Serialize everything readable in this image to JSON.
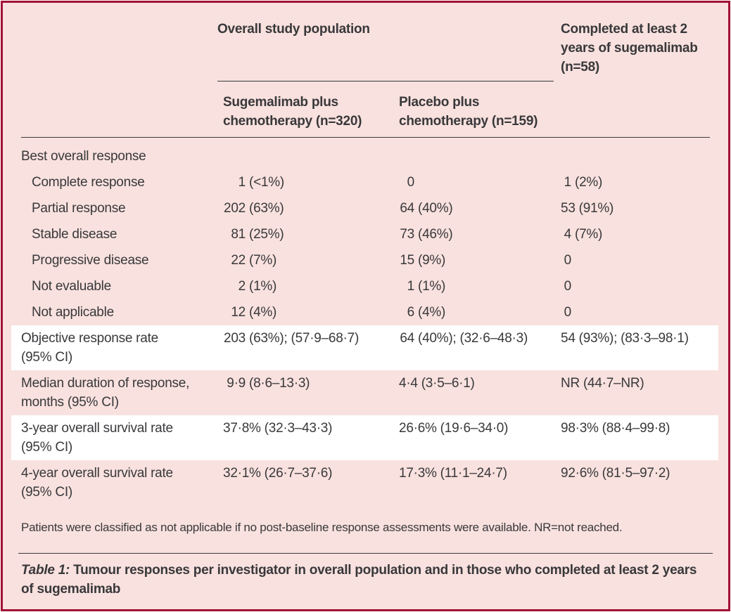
{
  "colors": {
    "frame": "#a31237",
    "bg": "#f8e1de",
    "hl": "#ffffff",
    "text": "#39383b",
    "rule": "#3a383b"
  },
  "header": {
    "group": "Overall study population",
    "col2": [
      "Sugemalimab plus",
      "chemotherapy (n=320)"
    ],
    "col3": [
      "Placebo plus",
      "chemotherapy (n=159)"
    ],
    "col4": [
      "Completed at least 2",
      "years of sugemalimab",
      "(n=58)"
    ]
  },
  "rows": [
    {
      "label": [
        "Best overall response"
      ],
      "cells": []
    },
    {
      "label": [
        "Complete response"
      ],
      "cells": [
        {
          "n": "1",
          "r": "(<1%)"
        },
        {
          "n": "0",
          "r": ""
        },
        {
          "n": "1",
          "r": "(2%)"
        }
      ]
    },
    {
      "label": [
        "Partial response"
      ],
      "cells": [
        {
          "n": "202",
          "r": "(63%)"
        },
        {
          "n": "64",
          "r": "(40%)"
        },
        {
          "n": "53",
          "r": "(91%)"
        }
      ]
    },
    {
      "label": [
        "Stable disease"
      ],
      "cells": [
        {
          "n": "81",
          "r": "(25%)"
        },
        {
          "n": "73",
          "r": "(46%)"
        },
        {
          "n": "4",
          "r": "(7%)"
        }
      ]
    },
    {
      "label": [
        "Progressive disease"
      ],
      "cells": [
        {
          "n": "22",
          "r": "(7%)"
        },
        {
          "n": "15",
          "r": "(9%)"
        },
        {
          "n": "0",
          "r": ""
        }
      ]
    },
    {
      "label": [
        "Not evaluable"
      ],
      "cells": [
        {
          "n": "2",
          "r": "(1%)"
        },
        {
          "n": "1",
          "r": "(1%)"
        },
        {
          "n": "0",
          "r": ""
        }
      ]
    },
    {
      "label": [
        "Not applicable"
      ],
      "cells": [
        {
          "n": "12",
          "r": "(4%)"
        },
        {
          "n": "6",
          "r": "(4%)"
        },
        {
          "n": "0",
          "r": ""
        }
      ]
    },
    {
      "label": [
        "Objective response rate",
        "(95% CI)"
      ],
      "cells": [
        {
          "n": "203",
          "r": "(63%); (57·9–68·7)"
        },
        {
          "n": "64",
          "r": "(40%); (32·6–48·3)"
        },
        {
          "n": "54",
          "r": "(93%); (83·3–98·1)"
        }
      ]
    },
    {
      "label": [
        "Median duration of response,",
        "months (95% CI)"
      ],
      "cells": [
        {
          "n": "9·9",
          "r": "(8·6–13·3)"
        },
        {
          "n": "4·4",
          "r": "(3·5–6·1)"
        },
        {
          "n": "NR",
          "r": "(44·7–NR)"
        }
      ]
    },
    {
      "label": [
        "3-year overall survival rate",
        "(95% CI)"
      ],
      "cells": [
        {
          "n": "37·8%",
          "r": "(32·3–43·3)"
        },
        {
          "n": "26·6%",
          "r": "(19·6–34·0)"
        },
        {
          "n": "98·3%",
          "r": "(88·4–99·8)"
        }
      ]
    },
    {
      "label": [
        "4-year overall survival rate",
        "(95% CI)"
      ],
      "cells": [
        {
          "n": "32·1%",
          "r": "(26·7–37·6)"
        },
        {
          "n": "17·3%",
          "r": "(11·1–24·7)"
        },
        {
          "n": "92·6%",
          "r": "(81·5–97·2)"
        }
      ]
    }
  ],
  "footnote": "Patients were classified as not applicable if no post-baseline response assessments were available. NR=not reached.",
  "caption": {
    "label": "Table 1:",
    "text": "Tumour responses per investigator in overall population and in those who completed at least 2 years of sugemalimab"
  }
}
